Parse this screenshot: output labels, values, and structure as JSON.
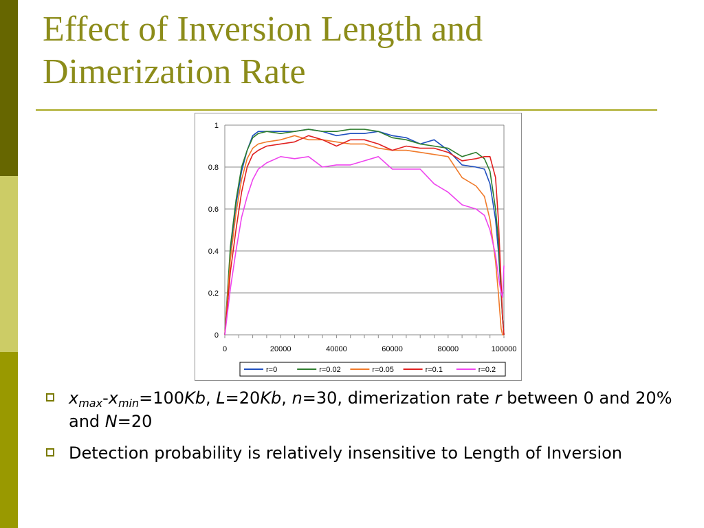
{
  "colors": {
    "accent_title": "#8c8c1a",
    "sidebar_top": "#666600",
    "sidebar_mid": "#cccc66",
    "sidebar_bottom": "#999900",
    "title_rule": "#a8a821",
    "bullet": "#7a7a00"
  },
  "slide": {
    "title_line1": "Effect of Inversion Length and",
    "title_line2": "Dimerization Rate"
  },
  "bullets": {
    "b1": {
      "x": "x",
      "max": "max",
      "dash": "-",
      "x2": "x",
      "min": "min",
      "eq1": "=100",
      "kb1": "Kb",
      "comma1": ", ",
      "L": "L",
      "eq2": "=20",
      "kb2": "Kb",
      "comma2": ", ",
      "n": "n",
      "eq3": "=30, dimerization rate ",
      "r": "r",
      "between": " between 0 and 20% and ",
      "N": "N",
      "eq4": "=20"
    },
    "b2": {
      "text": "Detection probability is relatively insensitive to Length of Inversion"
    }
  },
  "chart_data": {
    "type": "line",
    "xlim": [
      0,
      100000
    ],
    "ylim": [
      0,
      1
    ],
    "xticks": [
      "0",
      "20000",
      "40000",
      "60000",
      "80000",
      "100000"
    ],
    "yticks": [
      "0",
      "0.2",
      "0.4",
      "0.6",
      "0.8",
      "1"
    ],
    "grid": "horizontal",
    "legend_position": "bottom",
    "x": [
      0,
      2000,
      4000,
      6000,
      8000,
      10000,
      12000,
      15000,
      20000,
      25000,
      30000,
      35000,
      40000,
      45000,
      50000,
      55000,
      60000,
      65000,
      70000,
      75000,
      80000,
      85000,
      90000,
      93000,
      95000,
      97000,
      98000,
      99000,
      99500,
      100000
    ],
    "series": [
      {
        "name": "r=0",
        "color": "#1f4fbf",
        "values": [
          0.0,
          0.4,
          0.62,
          0.78,
          0.88,
          0.95,
          0.97,
          0.97,
          0.97,
          0.97,
          0.98,
          0.97,
          0.95,
          0.96,
          0.96,
          0.97,
          0.95,
          0.94,
          0.91,
          0.93,
          0.88,
          0.81,
          0.8,
          0.79,
          0.72,
          0.55,
          0.4,
          0.2,
          0.08,
          0.0
        ]
      },
      {
        "name": "r=0.02",
        "color": "#2e7d2e",
        "values": [
          0.0,
          0.42,
          0.64,
          0.8,
          0.88,
          0.94,
          0.96,
          0.97,
          0.96,
          0.97,
          0.98,
          0.97,
          0.97,
          0.98,
          0.98,
          0.97,
          0.94,
          0.93,
          0.91,
          0.9,
          0.89,
          0.85,
          0.87,
          0.84,
          0.78,
          0.6,
          0.45,
          0.2,
          0.08,
          0.0
        ]
      },
      {
        "name": "r=0.05",
        "color": "#f07a2a",
        "values": [
          0.0,
          0.36,
          0.58,
          0.74,
          0.84,
          0.89,
          0.91,
          0.92,
          0.93,
          0.95,
          0.93,
          0.93,
          0.92,
          0.91,
          0.91,
          0.89,
          0.88,
          0.88,
          0.87,
          0.86,
          0.85,
          0.75,
          0.71,
          0.66,
          0.55,
          0.35,
          0.2,
          0.03,
          0.0,
          0.0
        ]
      },
      {
        "name": "r=0.1",
        "color": "#e02020",
        "values": [
          0.0,
          0.3,
          0.5,
          0.68,
          0.8,
          0.86,
          0.88,
          0.9,
          0.91,
          0.92,
          0.95,
          0.93,
          0.9,
          0.93,
          0.93,
          0.91,
          0.88,
          0.9,
          0.89,
          0.89,
          0.87,
          0.83,
          0.84,
          0.85,
          0.85,
          0.75,
          0.55,
          0.25,
          0.08,
          0.0
        ]
      },
      {
        "name": "r=0.2",
        "color": "#ee44ee",
        "values": [
          0.0,
          0.22,
          0.4,
          0.56,
          0.66,
          0.74,
          0.79,
          0.82,
          0.85,
          0.84,
          0.85,
          0.8,
          0.81,
          0.81,
          0.83,
          0.85,
          0.79,
          0.79,
          0.79,
          0.72,
          0.68,
          0.62,
          0.6,
          0.57,
          0.5,
          0.38,
          0.28,
          0.2,
          0.18,
          0.33
        ]
      }
    ]
  }
}
